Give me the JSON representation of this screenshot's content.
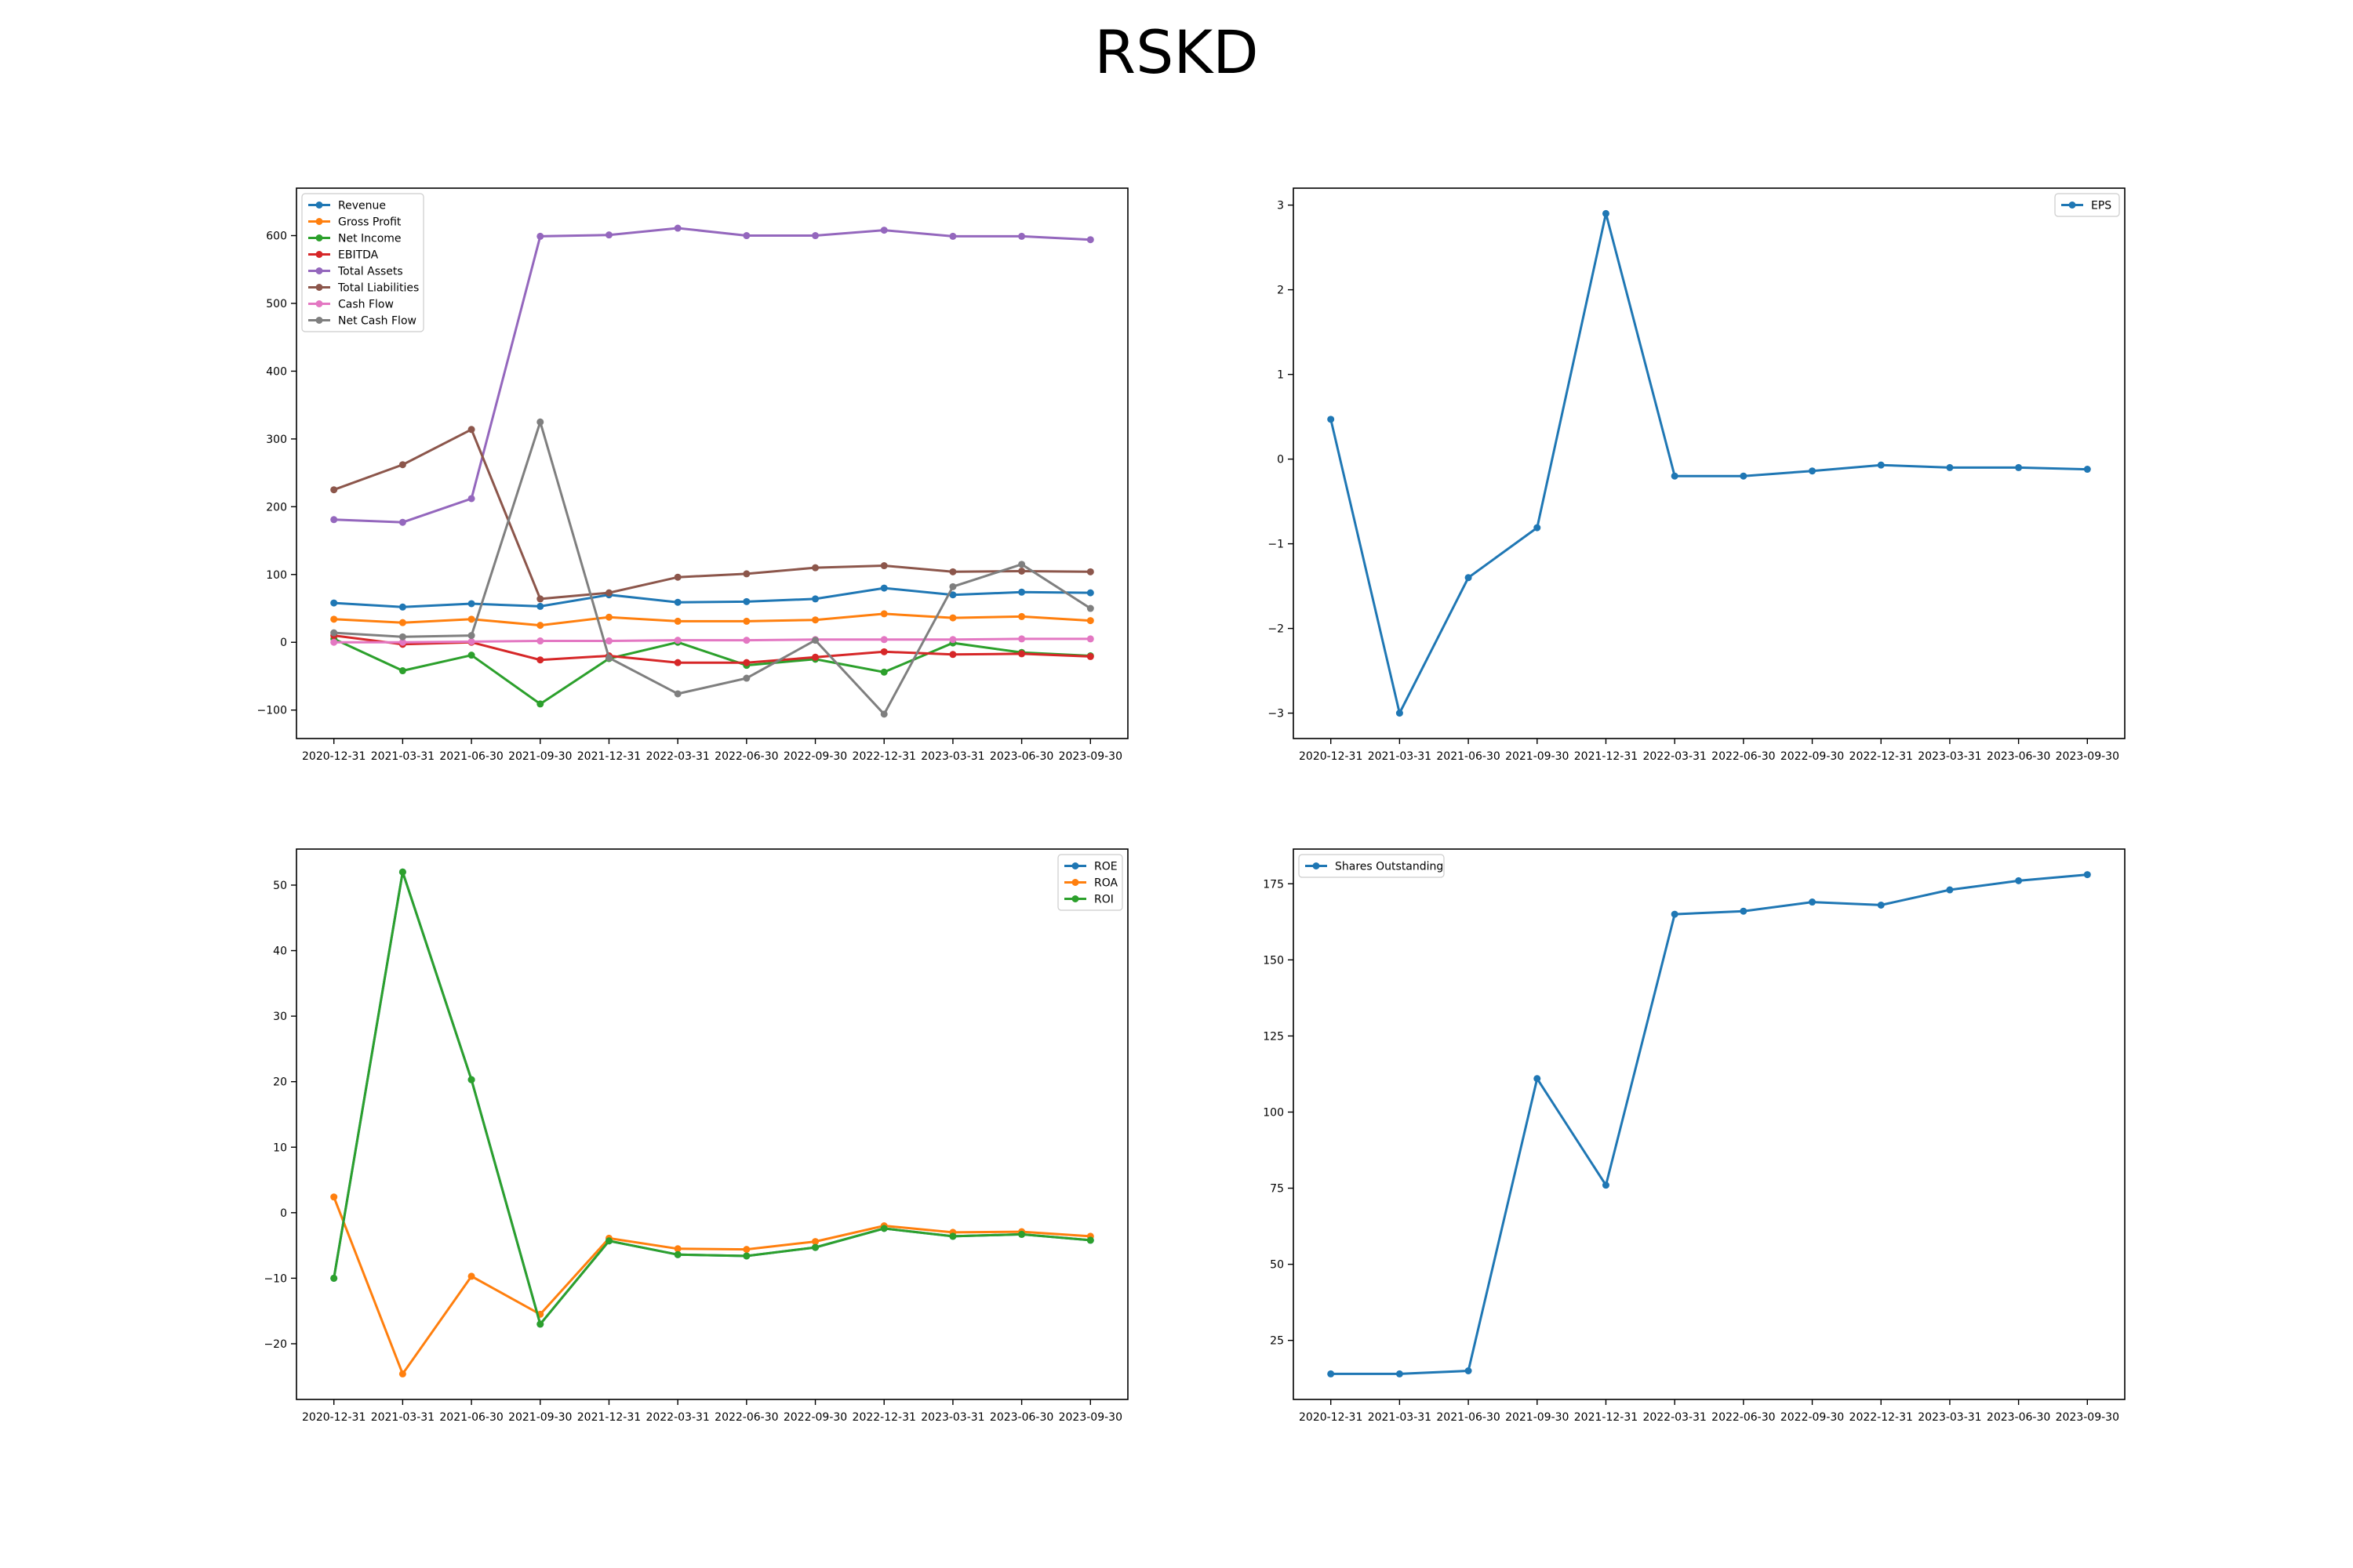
{
  "figure": {
    "title": "RSKD"
  },
  "chart_data": [
    {
      "type": "line",
      "title": "",
      "xlabel": "",
      "ylabel": "",
      "categories": [
        "2020-12-31",
        "2021-03-31",
        "2021-06-30",
        "2021-09-30",
        "2021-12-31",
        "2022-03-31",
        "2022-06-30",
        "2022-09-30",
        "2022-12-31",
        "2023-03-31",
        "2023-06-30",
        "2023-09-30"
      ],
      "ylim": [
        -142,
        670
      ],
      "yticks": [
        -100,
        0,
        100,
        200,
        300,
        400,
        500,
        600
      ],
      "ytick_labels": [
        "−100",
        "0",
        "100",
        "200",
        "300",
        "400",
        "500",
        "600"
      ],
      "legend": "top-left",
      "grid": false,
      "series": [
        {
          "name": "Revenue",
          "color": "#1f77b4",
          "values": [
            58,
            52,
            57,
            53,
            70,
            59,
            60,
            64,
            80,
            70,
            74,
            73
          ]
        },
        {
          "name": "Gross Profit",
          "color": "#ff7f0e",
          "values": [
            34,
            29,
            34,
            25,
            37,
            31,
            31,
            33,
            42,
            36,
            38,
            32
          ]
        },
        {
          "name": "Net Income",
          "color": "#2ca02c",
          "values": [
            5,
            -42,
            -19,
            -91,
            -24,
            0,
            -34,
            -25,
            -44,
            -1,
            -15,
            -20
          ]
        },
        {
          "name": "EBITDA",
          "color": "#d62728",
          "values": [
            10,
            -3,
            0,
            -26,
            -20,
            -30,
            -30,
            -22,
            -14,
            -18,
            -17,
            -21
          ]
        },
        {
          "name": "Total Assets",
          "color": "#9467bd",
          "values": [
            181,
            177,
            212,
            599,
            601,
            611,
            600,
            600,
            608,
            599,
            599,
            594
          ]
        },
        {
          "name": "Total Liabilities",
          "color": "#8c564b",
          "values": [
            225,
            262,
            314,
            64,
            73,
            96,
            101,
            110,
            113,
            104,
            105,
            104
          ]
        },
        {
          "name": "Cash Flow",
          "color": "#e377c2",
          "values": [
            0,
            0,
            1,
            2,
            2,
            3,
            3,
            4,
            4,
            4,
            5,
            5
          ]
        },
        {
          "name": "Net Cash Flow",
          "color": "#7f7f7f",
          "values": [
            14,
            8,
            10,
            325,
            -23,
            -76,
            -53,
            3,
            -106,
            82,
            115,
            50
          ]
        }
      ]
    },
    {
      "type": "line",
      "title": "",
      "xlabel": "",
      "ylabel": "",
      "categories": [
        "2020-12-31",
        "2021-03-31",
        "2021-06-30",
        "2021-09-30",
        "2021-12-31",
        "2022-03-31",
        "2022-06-30",
        "2022-09-30",
        "2022-12-31",
        "2023-03-31",
        "2023-06-30",
        "2023-09-30"
      ],
      "ylim": [
        -3.3,
        3.2
      ],
      "yticks": [
        -3,
        -2,
        -1,
        0,
        1,
        2,
        3
      ],
      "ytick_labels": [
        "−3",
        "−2",
        "−1",
        "0",
        "1",
        "2",
        "3"
      ],
      "legend": "top-right",
      "grid": false,
      "series": [
        {
          "name": "EPS",
          "color": "#1f77b4",
          "values": [
            0.47,
            -3.0,
            -1.4,
            -0.81,
            2.9,
            -0.2,
            -0.2,
            -0.14,
            -0.07,
            -0.1,
            -0.1,
            -0.12
          ]
        }
      ]
    },
    {
      "type": "line",
      "title": "",
      "xlabel": "",
      "ylabel": "",
      "categories": [
        "2020-12-31",
        "2021-03-31",
        "2021-06-30",
        "2021-09-30",
        "2021-12-31",
        "2022-03-31",
        "2022-06-30",
        "2022-09-30",
        "2022-12-31",
        "2023-03-31",
        "2023-06-30",
        "2023-09-30"
      ],
      "ylim": [
        -28.5,
        55.5
      ],
      "yticks": [
        -20,
        -10,
        0,
        10,
        20,
        30,
        40,
        50
      ],
      "ytick_labels": [
        "−20",
        "−10",
        "0",
        "10",
        "20",
        "30",
        "40",
        "50"
      ],
      "legend": "top-right",
      "grid": false,
      "series": [
        {
          "name": "ROE",
          "color": "#1f77b4",
          "values": [
            -10,
            52,
            20.3,
            -17,
            -4.3,
            -6.4,
            -6.6,
            -5.3,
            -2.4,
            -3.6,
            -3.3,
            -4.2
          ]
        },
        {
          "name": "ROA",
          "color": "#ff7f0e",
          "values": [
            2.4,
            -24.6,
            -9.7,
            -15.5,
            -3.9,
            -5.5,
            -5.6,
            -4.4,
            -2.0,
            -3.0,
            -2.9,
            -3.6
          ]
        },
        {
          "name": "ROI",
          "color": "#2ca02c",
          "values": [
            -10,
            52,
            20.3,
            -17,
            -4.3,
            -6.4,
            -6.6,
            -5.3,
            -2.4,
            -3.6,
            -3.3,
            -4.2
          ]
        }
      ]
    },
    {
      "type": "line",
      "title": "",
      "xlabel": "",
      "ylabel": "",
      "categories": [
        "2020-12-31",
        "2021-03-31",
        "2021-06-30",
        "2021-09-30",
        "2021-12-31",
        "2022-03-31",
        "2022-06-30",
        "2022-09-30",
        "2022-12-31",
        "2023-03-31",
        "2023-06-30",
        "2023-09-30"
      ],
      "ylim": [
        5.6,
        186.4
      ],
      "yticks": [
        25,
        50,
        75,
        100,
        125,
        150,
        175
      ],
      "ytick_labels": [
        "25",
        "50",
        "75",
        "100",
        "125",
        "150",
        "175"
      ],
      "legend": "top-left",
      "grid": false,
      "series": [
        {
          "name": "Shares Outstanding",
          "color": "#1f77b4",
          "values": [
            14,
            14,
            15,
            111,
            76,
            165,
            166,
            169,
            168,
            173,
            176,
            178
          ]
        }
      ]
    }
  ]
}
